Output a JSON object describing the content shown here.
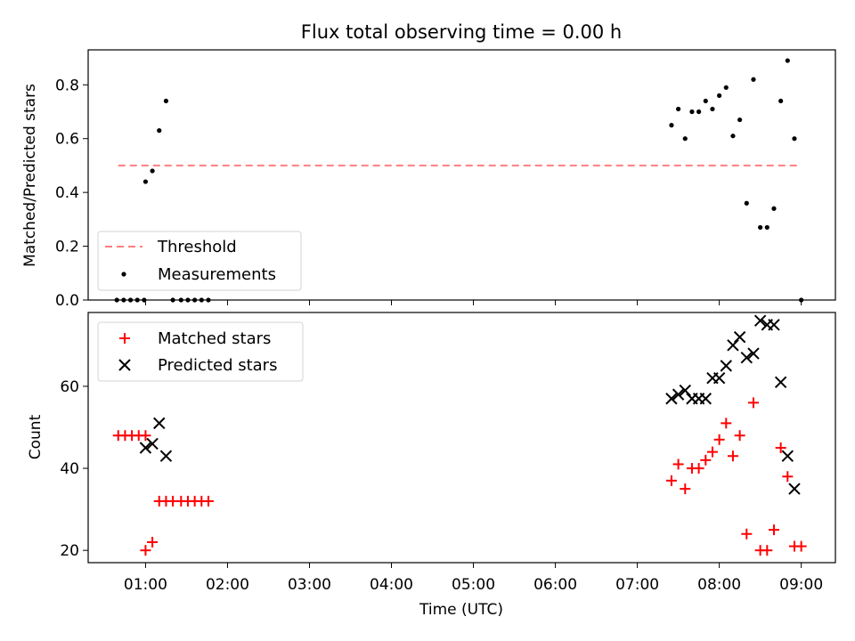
{
  "chart_data": [
    {
      "type": "scatter",
      "title": "Flux total observing time = 0.00 h",
      "ylabel": "Matched/Predicted stars",
      "xlabel": "",
      "xlim": [
        "00:18",
        "09:25"
      ],
      "ylim": [
        0,
        0.93
      ],
      "y_ticks": [
        0.0,
        0.2,
        0.4,
        0.6,
        0.8
      ],
      "y_tick_labels": [
        "0.0",
        "0.2",
        "0.4",
        "0.6",
        "0.8"
      ],
      "legend": {
        "placement": "lower-left",
        "entries": [
          "Threshold",
          "Measurements"
        ]
      },
      "series": [
        {
          "name": "Threshold",
          "style": "dashed-line",
          "color": "#ff7f7f",
          "x": [
            "00:40",
            "08:57"
          ],
          "y": [
            0.5,
            0.5
          ]
        },
        {
          "name": "Measurements",
          "style": "dot",
          "color": "#000000",
          "x": [
            "00:39",
            "00:44",
            "00:49",
            "00:54",
            "00:59",
            "01:00",
            "01:05",
            "01:10",
            "01:15",
            "01:20",
            "01:26",
            "01:31",
            "01:36",
            "01:41",
            "01:46",
            "07:25",
            "07:30",
            "07:35",
            "07:40",
            "07:45",
            "07:50",
            "07:55",
            "08:00",
            "08:05",
            "08:10",
            "08:15",
            "08:20",
            "08:25",
            "08:30",
            "08:35",
            "08:40",
            "08:45",
            "08:50",
            "08:55",
            "09:00"
          ],
          "y": [
            0,
            0,
            0,
            0,
            0,
            0.44,
            0.48,
            0.63,
            0.74,
            0,
            0,
            0,
            0,
            0,
            0,
            0.65,
            0.71,
            0.6,
            0.7,
            0.7,
            0.74,
            0.71,
            0.76,
            0.79,
            0.61,
            0.67,
            0.36,
            0.82,
            0.27,
            0.27,
            0.34,
            0.74,
            0.89,
            0.6,
            0
          ]
        }
      ]
    },
    {
      "type": "scatter",
      "ylabel": "Count",
      "xlabel": "Time (UTC)",
      "xlim": [
        "00:18",
        "09:25"
      ],
      "ylim": [
        17,
        78
      ],
      "y_ticks": [
        20,
        40,
        60
      ],
      "y_tick_labels": [
        "20",
        "40",
        "60"
      ],
      "x_ticks": [
        "01:00",
        "02:00",
        "03:00",
        "04:00",
        "05:00",
        "06:00",
        "07:00",
        "08:00",
        "09:00"
      ],
      "x_tick_labels": [
        "01:00",
        "02:00",
        "03:00",
        "04:00",
        "05:00",
        "06:00",
        "07:00",
        "08:00",
        "09:00"
      ],
      "legend": {
        "placement": "upper-left",
        "entries": [
          "Matched stars",
          "Predicted stars"
        ]
      },
      "series": [
        {
          "name": "Matched stars",
          "marker": "plus",
          "color": "#ff0000",
          "x": [
            "00:40",
            "00:45",
            "00:50",
            "00:55",
            "01:00",
            "01:00",
            "01:05",
            "01:10",
            "01:15",
            "01:20",
            "01:26",
            "01:31",
            "01:36",
            "01:41",
            "01:46",
            "07:25",
            "07:30",
            "07:35",
            "07:40",
            "07:45",
            "07:50",
            "07:55",
            "08:00",
            "08:05",
            "08:10",
            "08:15",
            "08:20",
            "08:25",
            "08:30",
            "08:35",
            "08:40",
            "08:45",
            "08:50",
            "08:55",
            "09:00"
          ],
          "y": [
            48,
            48,
            48,
            48,
            48,
            20,
            22,
            32,
            32,
            32,
            32,
            32,
            32,
            32,
            32,
            37,
            41,
            35,
            40,
            40,
            42,
            44,
            47,
            51,
            43,
            48,
            24,
            56,
            20,
            20,
            25,
            45,
            38,
            21,
            21
          ]
        },
        {
          "name": "Predicted stars",
          "marker": "x",
          "color": "#000000",
          "x": [
            "01:00",
            "01:05",
            "01:10",
            "01:15",
            "07:25",
            "07:30",
            "07:35",
            "07:40",
            "07:45",
            "07:50",
            "07:55",
            "08:00",
            "08:05",
            "08:10",
            "08:15",
            "08:20",
            "08:25",
            "08:30",
            "08:35",
            "08:40",
            "08:45",
            "08:50",
            "08:55"
          ],
          "y": [
            45,
            46,
            51,
            43,
            57,
            58,
            59,
            57,
            57,
            57,
            62,
            62,
            65,
            70,
            72,
            67,
            68,
            76,
            75,
            75,
            61,
            43,
            35
          ]
        }
      ]
    }
  ]
}
